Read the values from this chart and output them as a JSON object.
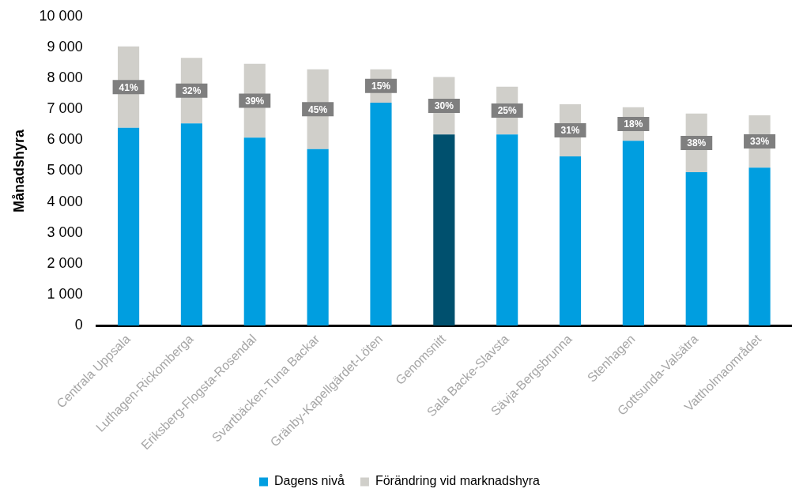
{
  "chart_data": {
    "type": "bar",
    "stacked": true,
    "ylabel": "Månadshyra",
    "categories": [
      "Centrala Uppsala",
      "Luthagen-Rickomberga",
      "Eriksberg-Flogsta-Rosendal",
      "Svartbäcken-Tuna Backar",
      "Gränby-Kapellgärdet-Löten",
      "Genomsnitt",
      "Sala Backe-Slavsta",
      "Sävja-Bergsbrunna",
      "Stenhagen",
      "Gottsunda-Valsätra",
      "Vattholmaområdet"
    ],
    "series": [
      {
        "name": "Dagens nivå",
        "color": "#009ee0",
        "colors": [
          "#009ee0",
          "#009ee0",
          "#009ee0",
          "#009ee0",
          "#009ee0",
          "#00506e",
          "#009ee0",
          "#009ee0",
          "#009ee0",
          "#009ee0",
          "#009ee0"
        ],
        "values": [
          6400,
          6540,
          6080,
          5710,
          7210,
          6180,
          6180,
          5470,
          5980,
          4960,
          5110
        ]
      },
      {
        "name": "Förändring vid marknadshyra",
        "color": "#d0cfca",
        "values": [
          2630,
          2120,
          2390,
          2580,
          1080,
          1860,
          1550,
          1690,
          1080,
          1900,
          1690
        ]
      }
    ],
    "annotations": [
      "41%",
      "32%",
      "39%",
      "45%",
      "15%",
      "30%",
      "25%",
      "31%",
      "18%",
      "38%",
      "33%"
    ],
    "ylim": [
      0,
      10000
    ],
    "yticks": [
      {
        "value": 0,
        "label": "0"
      },
      {
        "value": 1000,
        "label": "1 000"
      },
      {
        "value": 2000,
        "label": "2 000"
      },
      {
        "value": 3000,
        "label": "3 000"
      },
      {
        "value": 4000,
        "label": "4 000"
      },
      {
        "value": 5000,
        "label": "5 000"
      },
      {
        "value": 6000,
        "label": "6 000"
      },
      {
        "value": 7000,
        "label": "7 000"
      },
      {
        "value": 8000,
        "label": "8 000"
      },
      {
        "value": 9000,
        "label": "9 000"
      },
      {
        "value": 10000,
        "label": "10 000"
      }
    ],
    "grid": false,
    "legend": "bottom"
  }
}
